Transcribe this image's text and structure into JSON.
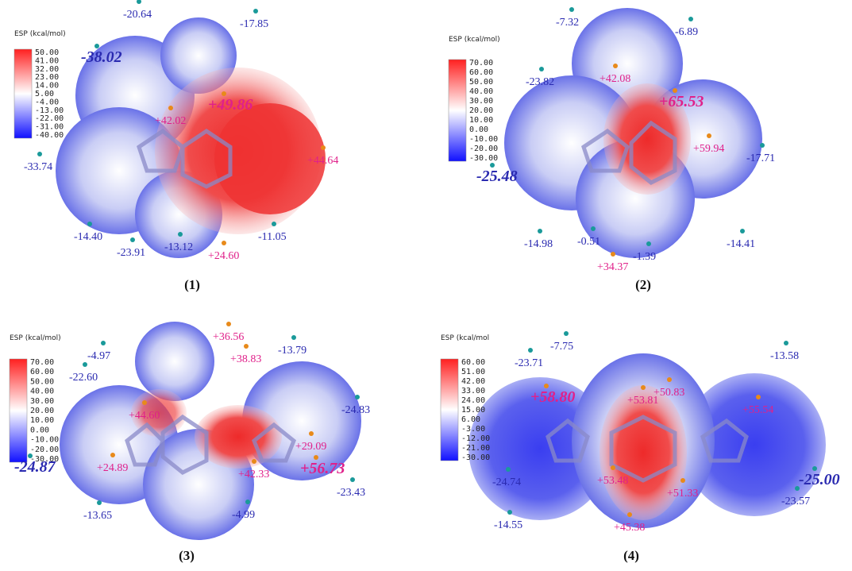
{
  "panels": [
    {
      "caption": "(1)",
      "legend_title": "ESP (kcal/mol)",
      "scale": [
        "50.00",
        "41.00",
        "32.00",
        "23.00",
        "14.00",
        "5.00",
        "-4.00",
        "-13.00",
        "-22.00",
        "-31.00",
        "-40.00"
      ],
      "labels": [
        "-20.64",
        "-17.85",
        "-38.02",
        "+49.86",
        "+42.02",
        "+44.64",
        "-33.74",
        "-14.40",
        "-13.12",
        "-11.05",
        "-23.91",
        "+24.60"
      ]
    },
    {
      "caption": "(2)",
      "legend_title": "ESP (kcal/mol)",
      "scale": [
        "70.00",
        "60.00",
        "50.00",
        "40.00",
        "30.00",
        "20.00",
        "10.00",
        "0.00",
        "-10.00",
        "-20.00",
        "-30.00"
      ],
      "labels": [
        "-7.32",
        "-6.89",
        "-23.82",
        "+42.08",
        "+65.53",
        "+59.94",
        "-17.71",
        "-25.48",
        "-14.98",
        "-0.51",
        "-1.39",
        "-14.41",
        "+34.37"
      ]
    },
    {
      "caption": "(3)",
      "legend_title": "ESP (kcal/mol)",
      "scale": [
        "70.00",
        "60.00",
        "50.00",
        "40.00",
        "30.00",
        "20.00",
        "10.00",
        "0.00",
        "-10.00",
        "-20.00",
        "-30.00"
      ],
      "labels": [
        "+36.56",
        "-4.97",
        "+38.83",
        "-13.79",
        "-22.60",
        "-24.83",
        "+44.60",
        "+29.09",
        "-24.87",
        "+24.89",
        "+56.73",
        "+42.33",
        "-23.43",
        "-13.65",
        "-4.99"
      ]
    },
    {
      "caption": "(4)",
      "legend_title": "ESP (kcal/mol",
      "scale": [
        "60.00",
        "51.00",
        "42.00",
        "33.00",
        "24.00",
        "15.00",
        "6.00",
        "-3.00",
        "-12.00",
        "-21.00",
        "-30.00"
      ],
      "labels": [
        "-7.75",
        "-13.58",
        "-23.71",
        "+50.83",
        "+58.80",
        "+53.81",
        "+55.54",
        "-25.00",
        "-24.74",
        "+53.48",
        "+51.33",
        "-23.57",
        "-14.55",
        "+45.38"
      ]
    }
  ]
}
